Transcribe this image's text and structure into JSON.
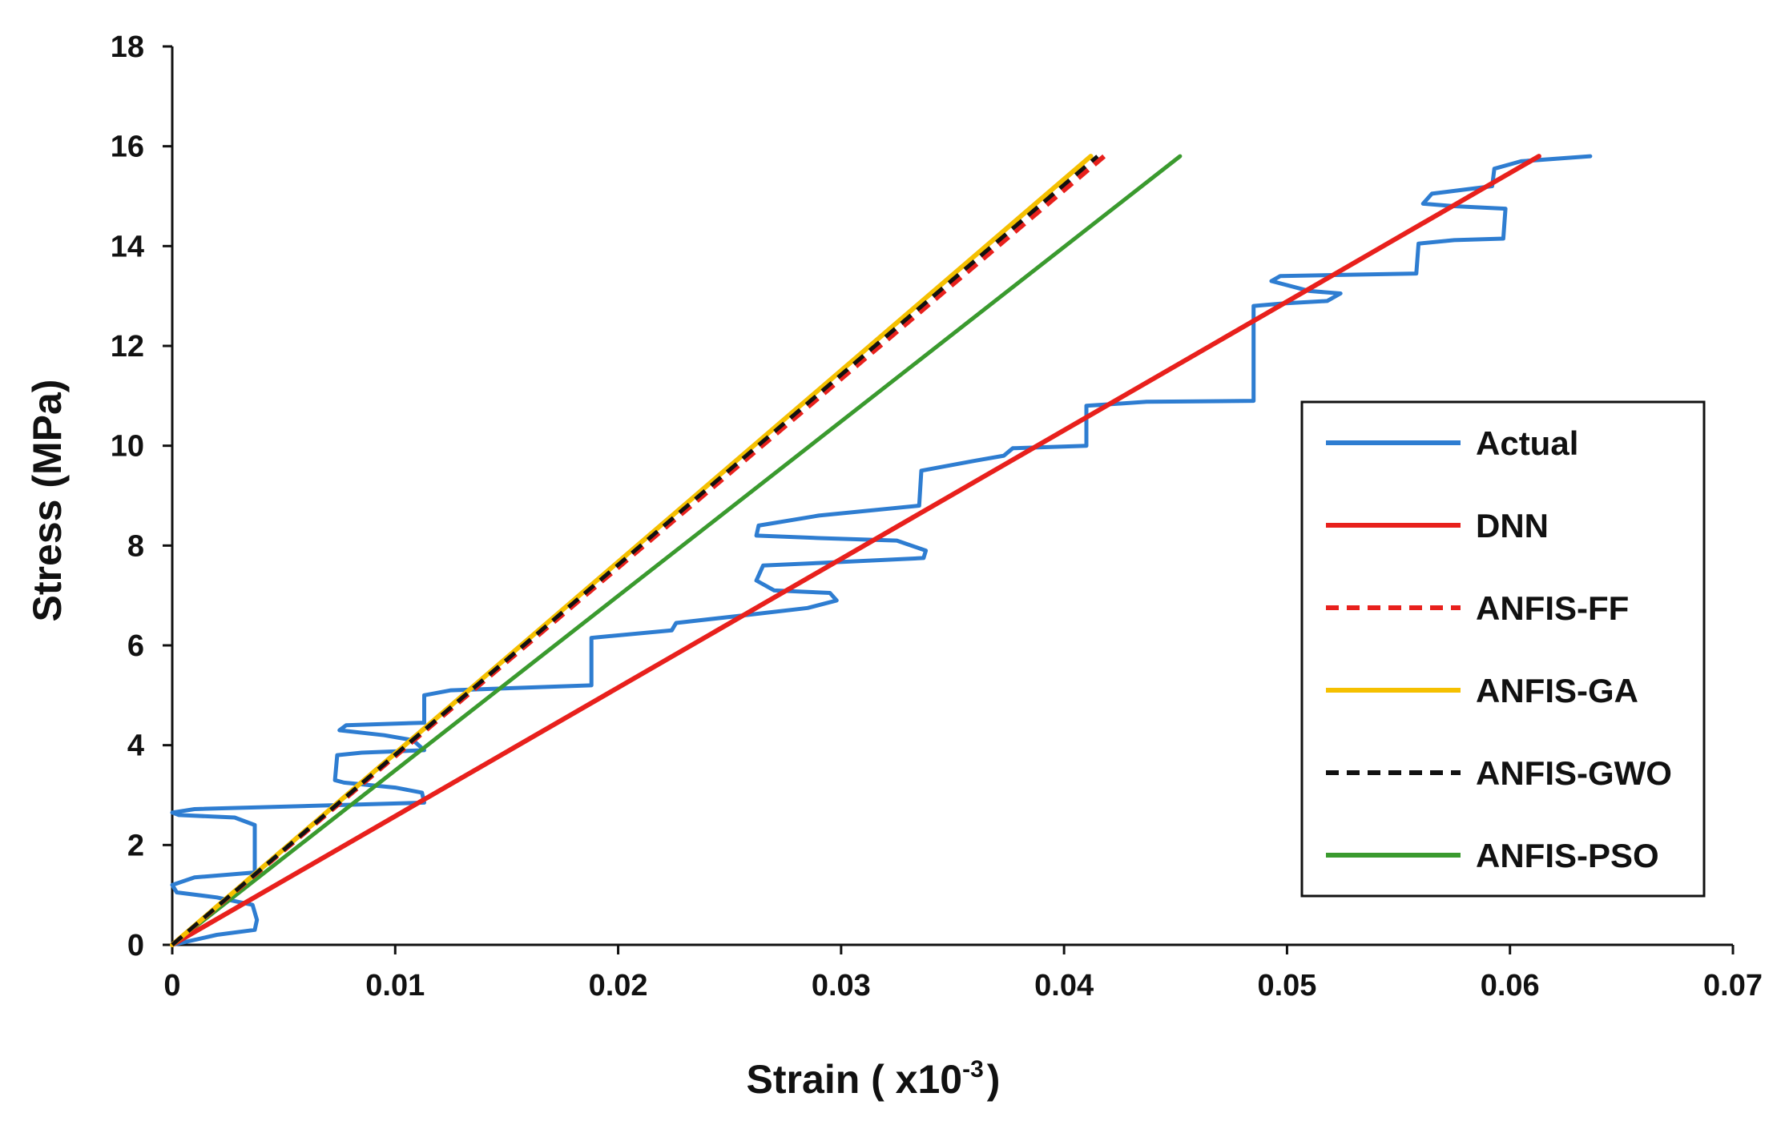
{
  "chart_data": {
    "type": "line",
    "title": "",
    "xlabel": "Strain ( x10",
    "xlabel_sup": "-3",
    "xlabel_suffix": ")",
    "ylabel": "Stress (MPa)",
    "xlim": [
      0,
      0.07
    ],
    "ylim": [
      0,
      18
    ],
    "x_ticks": [
      0,
      0.01,
      0.02,
      0.03,
      0.04,
      0.05,
      0.06,
      0.07
    ],
    "x_tick_labels": [
      "0",
      "0.01",
      "0.02",
      "0.03",
      "0.04",
      "0.05",
      "0.06",
      "0.07"
    ],
    "y_ticks": [
      0,
      2,
      4,
      6,
      8,
      10,
      12,
      14,
      16,
      18
    ],
    "y_tick_labels": [
      "0",
      "2",
      "4",
      "6",
      "8",
      "10",
      "12",
      "14",
      "16",
      "18"
    ],
    "grid": false,
    "legend_position": "right",
    "series": [
      {
        "name": "Actual",
        "color": "#2E7DD1",
        "dash": "solid",
        "points": [
          [
            0.0,
            0.0
          ],
          [
            0.0005,
            0.05
          ],
          [
            0.002,
            0.2
          ],
          [
            0.0037,
            0.3
          ],
          [
            0.0038,
            0.5
          ],
          [
            0.0036,
            0.8
          ],
          [
            0.002,
            0.95
          ],
          [
            0.0002,
            1.05
          ],
          [
            0.0,
            1.2
          ],
          [
            0.001,
            1.35
          ],
          [
            0.0037,
            1.45
          ],
          [
            0.0037,
            2.4
          ],
          [
            0.0028,
            2.55
          ],
          [
            0.0003,
            2.6
          ],
          [
            0.0,
            2.65
          ],
          [
            0.001,
            2.72
          ],
          [
            0.0113,
            2.85
          ],
          [
            0.0112,
            3.05
          ],
          [
            0.01,
            3.15
          ],
          [
            0.0077,
            3.25
          ],
          [
            0.0073,
            3.3
          ],
          [
            0.0074,
            3.8
          ],
          [
            0.0085,
            3.85
          ],
          [
            0.0113,
            3.9
          ],
          [
            0.0108,
            4.1
          ],
          [
            0.0095,
            4.2
          ],
          [
            0.0075,
            4.3
          ],
          [
            0.0078,
            4.4
          ],
          [
            0.0113,
            4.45
          ],
          [
            0.0113,
            5.0
          ],
          [
            0.0125,
            5.1
          ],
          [
            0.0188,
            5.2
          ],
          [
            0.0188,
            6.15
          ],
          [
            0.0224,
            6.3
          ],
          [
            0.0226,
            6.45
          ],
          [
            0.0256,
            6.6
          ],
          [
            0.0285,
            6.75
          ],
          [
            0.0298,
            6.9
          ],
          [
            0.0295,
            7.05
          ],
          [
            0.027,
            7.1
          ],
          [
            0.0262,
            7.3
          ],
          [
            0.0265,
            7.6
          ],
          [
            0.029,
            7.65
          ],
          [
            0.0337,
            7.75
          ],
          [
            0.0338,
            7.9
          ],
          [
            0.0325,
            8.1
          ],
          [
            0.029,
            8.15
          ],
          [
            0.0262,
            8.2
          ],
          [
            0.0263,
            8.4
          ],
          [
            0.029,
            8.6
          ],
          [
            0.0335,
            8.8
          ],
          [
            0.0336,
            9.5
          ],
          [
            0.036,
            9.7
          ],
          [
            0.0373,
            9.8
          ],
          [
            0.0377,
            9.95
          ],
          [
            0.041,
            10.0
          ],
          [
            0.041,
            10.8
          ],
          [
            0.0437,
            10.88
          ],
          [
            0.0485,
            10.9
          ],
          [
            0.0485,
            12.8
          ],
          [
            0.0498,
            12.85
          ],
          [
            0.0518,
            12.9
          ],
          [
            0.0524,
            13.05
          ],
          [
            0.051,
            13.1
          ],
          [
            0.0493,
            13.3
          ],
          [
            0.0497,
            13.4
          ],
          [
            0.0558,
            13.45
          ],
          [
            0.0559,
            14.05
          ],
          [
            0.0575,
            14.12
          ],
          [
            0.0597,
            14.15
          ],
          [
            0.0598,
            14.75
          ],
          [
            0.0575,
            14.8
          ],
          [
            0.0561,
            14.85
          ],
          [
            0.0565,
            15.05
          ],
          [
            0.0592,
            15.2
          ],
          [
            0.0593,
            15.55
          ],
          [
            0.0605,
            15.7
          ],
          [
            0.0636,
            15.8
          ]
        ]
      },
      {
        "name": "DNN",
        "color": "#E8201C",
        "dash": "solid",
        "points": [
          [
            0.0,
            0.0
          ],
          [
            0.0613,
            15.8
          ]
        ]
      },
      {
        "name": "ANFIS-FF",
        "color": "#E8201C",
        "dash": "dashed",
        "points": [
          [
            0.0,
            0.0
          ],
          [
            0.0418,
            15.8
          ]
        ]
      },
      {
        "name": "ANFIS-GA",
        "color": "#F5C000",
        "dash": "solid",
        "points": [
          [
            0.0,
            0.0
          ],
          [
            0.0412,
            15.8
          ]
        ]
      },
      {
        "name": "ANFIS-GWO",
        "color": "#111111",
        "dash": "dashed",
        "points": [
          [
            0.0,
            0.0
          ],
          [
            0.0415,
            15.8
          ]
        ]
      },
      {
        "name": "ANFIS-PSO",
        "color": "#3A9A2E",
        "dash": "solid",
        "points": [
          [
            0.0,
            0.0
          ],
          [
            0.0452,
            15.8
          ]
        ]
      }
    ]
  }
}
